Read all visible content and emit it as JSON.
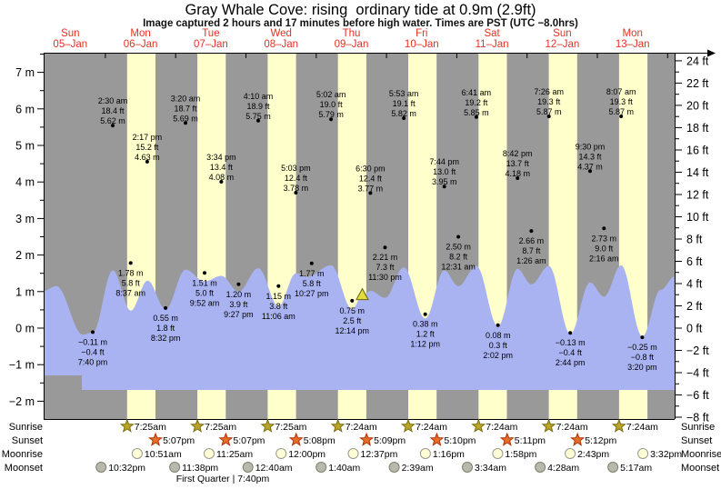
{
  "title": "Gray Whale Cove: rising  ordinary tide at 0.9m (2.9ft)",
  "subtitle": "Image captured 2 hours and 17 minutes before high water. Times are PST (UTC −8.0hrs)",
  "colors": {
    "night_band": "#999999",
    "daylight_band": "#ffffcc",
    "tide_fill": "#a9b3f2",
    "day_label_red": "#e73123",
    "axis_black": "#000000",
    "now_marker_fill": "#e3dc3e",
    "now_marker_edge": "#6b6408",
    "sunrise_star_fill": "#b9a528",
    "sunrise_star_edge": "#7a6e10",
    "sunset_star_fill": "#e66e28",
    "sunset_star_edge": "#b03208",
    "moonrise_circle_fill": "#ffffd8",
    "moonrise_circle_edge": "#9a9a88",
    "moonset_circle_fill": "#b8b8ac",
    "moonset_circle_edge": "#80806e"
  },
  "days": [
    {
      "name": "Sun",
      "date": "05–Jan"
    },
    {
      "name": "Mon",
      "date": "06–Jan"
    },
    {
      "name": "Tue",
      "date": "07–Jan"
    },
    {
      "name": "Wed",
      "date": "08–Jan"
    },
    {
      "name": "Thu",
      "date": "09–Jan"
    },
    {
      "name": "Fri",
      "date": "10–Jan"
    },
    {
      "name": "Sat",
      "date": "11–Jan"
    },
    {
      "name": "Sun",
      "date": "12–Jan"
    },
    {
      "name": "Mon",
      "date": "13–Jan"
    }
  ],
  "chart_data": {
    "type": "area",
    "title": "Gray Whale Cove tide curve, Sun 05-Jan to Mon 13-Jan",
    "ylabel_left_unit": "m",
    "ylabel_right_unit": "ft",
    "ylim_m": [
      -2.49,
      7.54
    ],
    "y_ticks_m": [
      7,
      6,
      5,
      4,
      3,
      2,
      1,
      0,
      -1,
      -2
    ],
    "y_ticks_ft": [
      24,
      22,
      20,
      18,
      16,
      14,
      12,
      10,
      8,
      6,
      4,
      2,
      0,
      -2,
      -4,
      -6,
      -8
    ],
    "grid": false,
    "high_tides": [
      {
        "t": 1.104,
        "time": "2:30 am",
        "ft": "18.4 ft",
        "m": "5.62 m",
        "value_m": 5.62
      },
      {
        "t": 1.595,
        "time": "2:17 pm",
        "ft": "15.2 ft",
        "m": "4.63 m",
        "value_m": 4.63
      },
      {
        "t": 2.139,
        "time": "3:20 am",
        "ft": "18.7 ft",
        "m": "5.69 m",
        "value_m": 5.69
      },
      {
        "t": 2.649,
        "time": "3:34 pm",
        "ft": "13.4 ft",
        "m": "4.08 m",
        "value_m": 4.08
      },
      {
        "t": 3.174,
        "time": "4:10 am",
        "ft": "18.9 ft",
        "m": "5.75 m",
        "value_m": 5.75
      },
      {
        "t": 3.71,
        "time": "5:03 pm",
        "ft": "12.4 ft",
        "m": "3.78 m",
        "value_m": 3.78
      },
      {
        "t": 4.21,
        "time": "5:02 am",
        "ft": "19.0 ft",
        "m": "5.79 m",
        "value_m": 5.79
      },
      {
        "t": 4.771,
        "time": "6:30 pm",
        "ft": "12.4 ft",
        "m": "3.77 m",
        "value_m": 3.77
      },
      {
        "t": 5.245,
        "time": "5:53 am",
        "ft": "19.1 ft",
        "m": "5.82 m",
        "value_m": 5.82
      },
      {
        "t": 5.822,
        "time": "7:44 pm",
        "ft": "13.0 ft",
        "m": "3.95 m",
        "value_m": 3.95
      },
      {
        "t": 6.278,
        "time": "6:41 am",
        "ft": "19.2 ft",
        "m": "5.85 m",
        "value_m": 5.85
      },
      {
        "t": 6.863,
        "time": "8:42 pm",
        "ft": "13.7 ft",
        "m": "4.18 m",
        "value_m": 4.18
      },
      {
        "t": 7.31,
        "time": "7:26 am",
        "ft": "19.3 ft",
        "m": "5.87 m",
        "value_m": 5.87
      },
      {
        "t": 7.896,
        "time": "9:30 pm",
        "ft": "14.3 ft",
        "m": "4.37 m",
        "value_m": 4.37
      },
      {
        "t": 8.338,
        "time": "8:07 am",
        "ft": "19.3 ft",
        "m": "5.87 m",
        "value_m": 5.87
      }
    ],
    "low_tides": [
      {
        "t": 0.819,
        "m": "−0.11 m",
        "ft": "−0.4 ft",
        "time": "7:40 pm",
        "value_m": -0.11
      },
      {
        "t": 1.359,
        "m": "1.78 m",
        "ft": "5.8 ft",
        "time": "8:37 am",
        "value_m": 1.78
      },
      {
        "t": 1.856,
        "m": "0.55 m",
        "ft": "1.8 ft",
        "time": "8:32 pm",
        "value_m": 0.55
      },
      {
        "t": 2.411,
        "m": "1.51 m",
        "ft": "5.0 ft",
        "time": "9:52 am",
        "value_m": 1.51
      },
      {
        "t": 2.894,
        "m": "1.20 m",
        "ft": "3.9 ft",
        "time": "9:27 pm",
        "value_m": 1.2
      },
      {
        "t": 3.463,
        "m": "1.15 m",
        "ft": "3.8 ft",
        "time": "11:06 am",
        "value_m": 1.15
      },
      {
        "t": 3.935,
        "m": "1.77 m",
        "ft": "5.8 ft",
        "time": "10:27 pm",
        "value_m": 1.77
      },
      {
        "t": 4.51,
        "m": "0.75 m",
        "ft": "2.5 ft",
        "time": "12:14 pm",
        "value_m": 0.75
      },
      {
        "t": 4.979,
        "m": "2.21 m",
        "ft": "7.3 ft",
        "time": "11:30 pm",
        "value_m": 2.21
      },
      {
        "t": 5.55,
        "m": "0.38 m",
        "ft": "1.2 ft",
        "time": "1:12 pm",
        "value_m": 0.38
      },
      {
        "t": 6.021,
        "m": "2.50 m",
        "ft": "8.2 ft",
        "time": "12:31 am",
        "value_m": 2.5
      },
      {
        "t": 6.585,
        "m": "0.08 m",
        "ft": "0.3 ft",
        "time": "2:02 pm",
        "value_m": 0.08
      },
      {
        "t": 7.06,
        "m": "2.66 m",
        "ft": "8.7 ft",
        "time": "1:26 am",
        "value_m": 2.66
      },
      {
        "t": 7.614,
        "m": "−0.13 m",
        "ft": "−0.4 ft",
        "time": "2:44 pm",
        "value_m": -0.13
      },
      {
        "t": 8.094,
        "m": "2.73 m",
        "ft": "9.0 ft",
        "time": "2:16 am",
        "value_m": 2.73
      },
      {
        "t": 8.639,
        "m": "−0.25 m",
        "ft": "−0.8 ft",
        "time": "3:20 pm",
        "value_m": -0.25
      }
    ],
    "curve_points": [
      [
        0.121,
        1.02
      ],
      [
        0.3,
        1.15
      ],
      [
        0.68,
        -0.18
      ],
      [
        0.82,
        -0.12
      ],
      [
        1.104,
        1.58
      ],
      [
        1.36,
        0.48
      ],
      [
        1.6,
        1.3
      ],
      [
        1.856,
        0.52
      ],
      [
        2.139,
        1.6
      ],
      [
        2.411,
        1.28
      ],
      [
        2.649,
        1.43
      ],
      [
        2.894,
        1.0
      ],
      [
        3.174,
        1.64
      ],
      [
        3.463,
        0.6
      ],
      [
        3.71,
        1.5
      ],
      [
        3.87,
        1.4
      ],
      [
        4.21,
        1.72
      ],
      [
        4.51,
        0.52
      ],
      [
        4.655,
        0.88
      ],
      [
        4.771,
        1.02
      ],
      [
        4.979,
        0.83
      ],
      [
        5.245,
        1.66
      ],
      [
        5.55,
        0.26
      ],
      [
        5.822,
        1.58
      ],
      [
        6.021,
        1.15
      ],
      [
        6.278,
        1.7
      ],
      [
        6.585,
        0.05
      ],
      [
        6.863,
        1.62
      ],
      [
        7.06,
        1.2
      ],
      [
        7.31,
        1.7
      ],
      [
        7.614,
        -0.16
      ],
      [
        7.896,
        1.25
      ],
      [
        8.094,
        0.86
      ],
      [
        8.338,
        1.72
      ],
      [
        8.639,
        -0.23
      ],
      [
        8.9,
        1.05
      ],
      [
        9.105,
        1.42
      ]
    ],
    "now_marker": {
      "t": 4.655,
      "m": 0.93
    },
    "daylight_days": [
      1,
      2,
      3,
      4,
      5,
      6,
      7,
      8
    ],
    "daylight_start_frac": 0.309,
    "daylight_end_frac": 0.7132
  },
  "astro": {
    "row_labels": [
      "Sunrise",
      "Sunset",
      "Moonrise",
      "Moonset"
    ],
    "sunrise": [
      {
        "t": 1.309,
        "label": "7:25am"
      },
      {
        "t": 2.309,
        "label": "7:25am"
      },
      {
        "t": 3.309,
        "label": "7:25am"
      },
      {
        "t": 4.308,
        "label": "7:24am"
      },
      {
        "t": 5.308,
        "label": "7:24am"
      },
      {
        "t": 6.308,
        "label": "7:24am"
      },
      {
        "t": 7.308,
        "label": "7:24am"
      },
      {
        "t": 8.308,
        "label": "7:24am"
      }
    ],
    "sunset": [
      {
        "t": 1.713,
        "label": "5:07pm"
      },
      {
        "t": 2.713,
        "label": "5:07pm"
      },
      {
        "t": 3.714,
        "label": "5:08pm"
      },
      {
        "t": 4.715,
        "label": "5:09pm"
      },
      {
        "t": 5.715,
        "label": "5:10pm"
      },
      {
        "t": 6.716,
        "label": "5:11pm"
      },
      {
        "t": 7.717,
        "label": "5:12pm"
      }
    ],
    "moonrise": [
      {
        "t": 1.452,
        "label": "10:51am"
      },
      {
        "t": 2.476,
        "label": "11:25am"
      },
      {
        "t": 3.5,
        "label": "12:00pm"
      },
      {
        "t": 4.526,
        "label": "12:37pm"
      },
      {
        "t": 5.553,
        "label": "1:16pm"
      },
      {
        "t": 6.582,
        "label": "1:58pm"
      },
      {
        "t": 7.613,
        "label": "2:43pm"
      },
      {
        "t": 8.647,
        "label": "3:32pm"
      }
    ],
    "moonset": [
      {
        "t": 0.939,
        "label": "10:32pm"
      },
      {
        "t": 1.985,
        "label": "11:38pm"
      },
      {
        "t": 3.028,
        "label": "12:40am"
      },
      {
        "t": 4.069,
        "label": "1:40am"
      },
      {
        "t": 5.11,
        "label": "2:39am"
      },
      {
        "t": 6.149,
        "label": "3:34am"
      },
      {
        "t": 7.186,
        "label": "4:28am"
      },
      {
        "t": 8.22,
        "label": "5:17am"
      }
    ],
    "caption": "First Quarter | 7:40pm",
    "caption_t": 2.67
  }
}
